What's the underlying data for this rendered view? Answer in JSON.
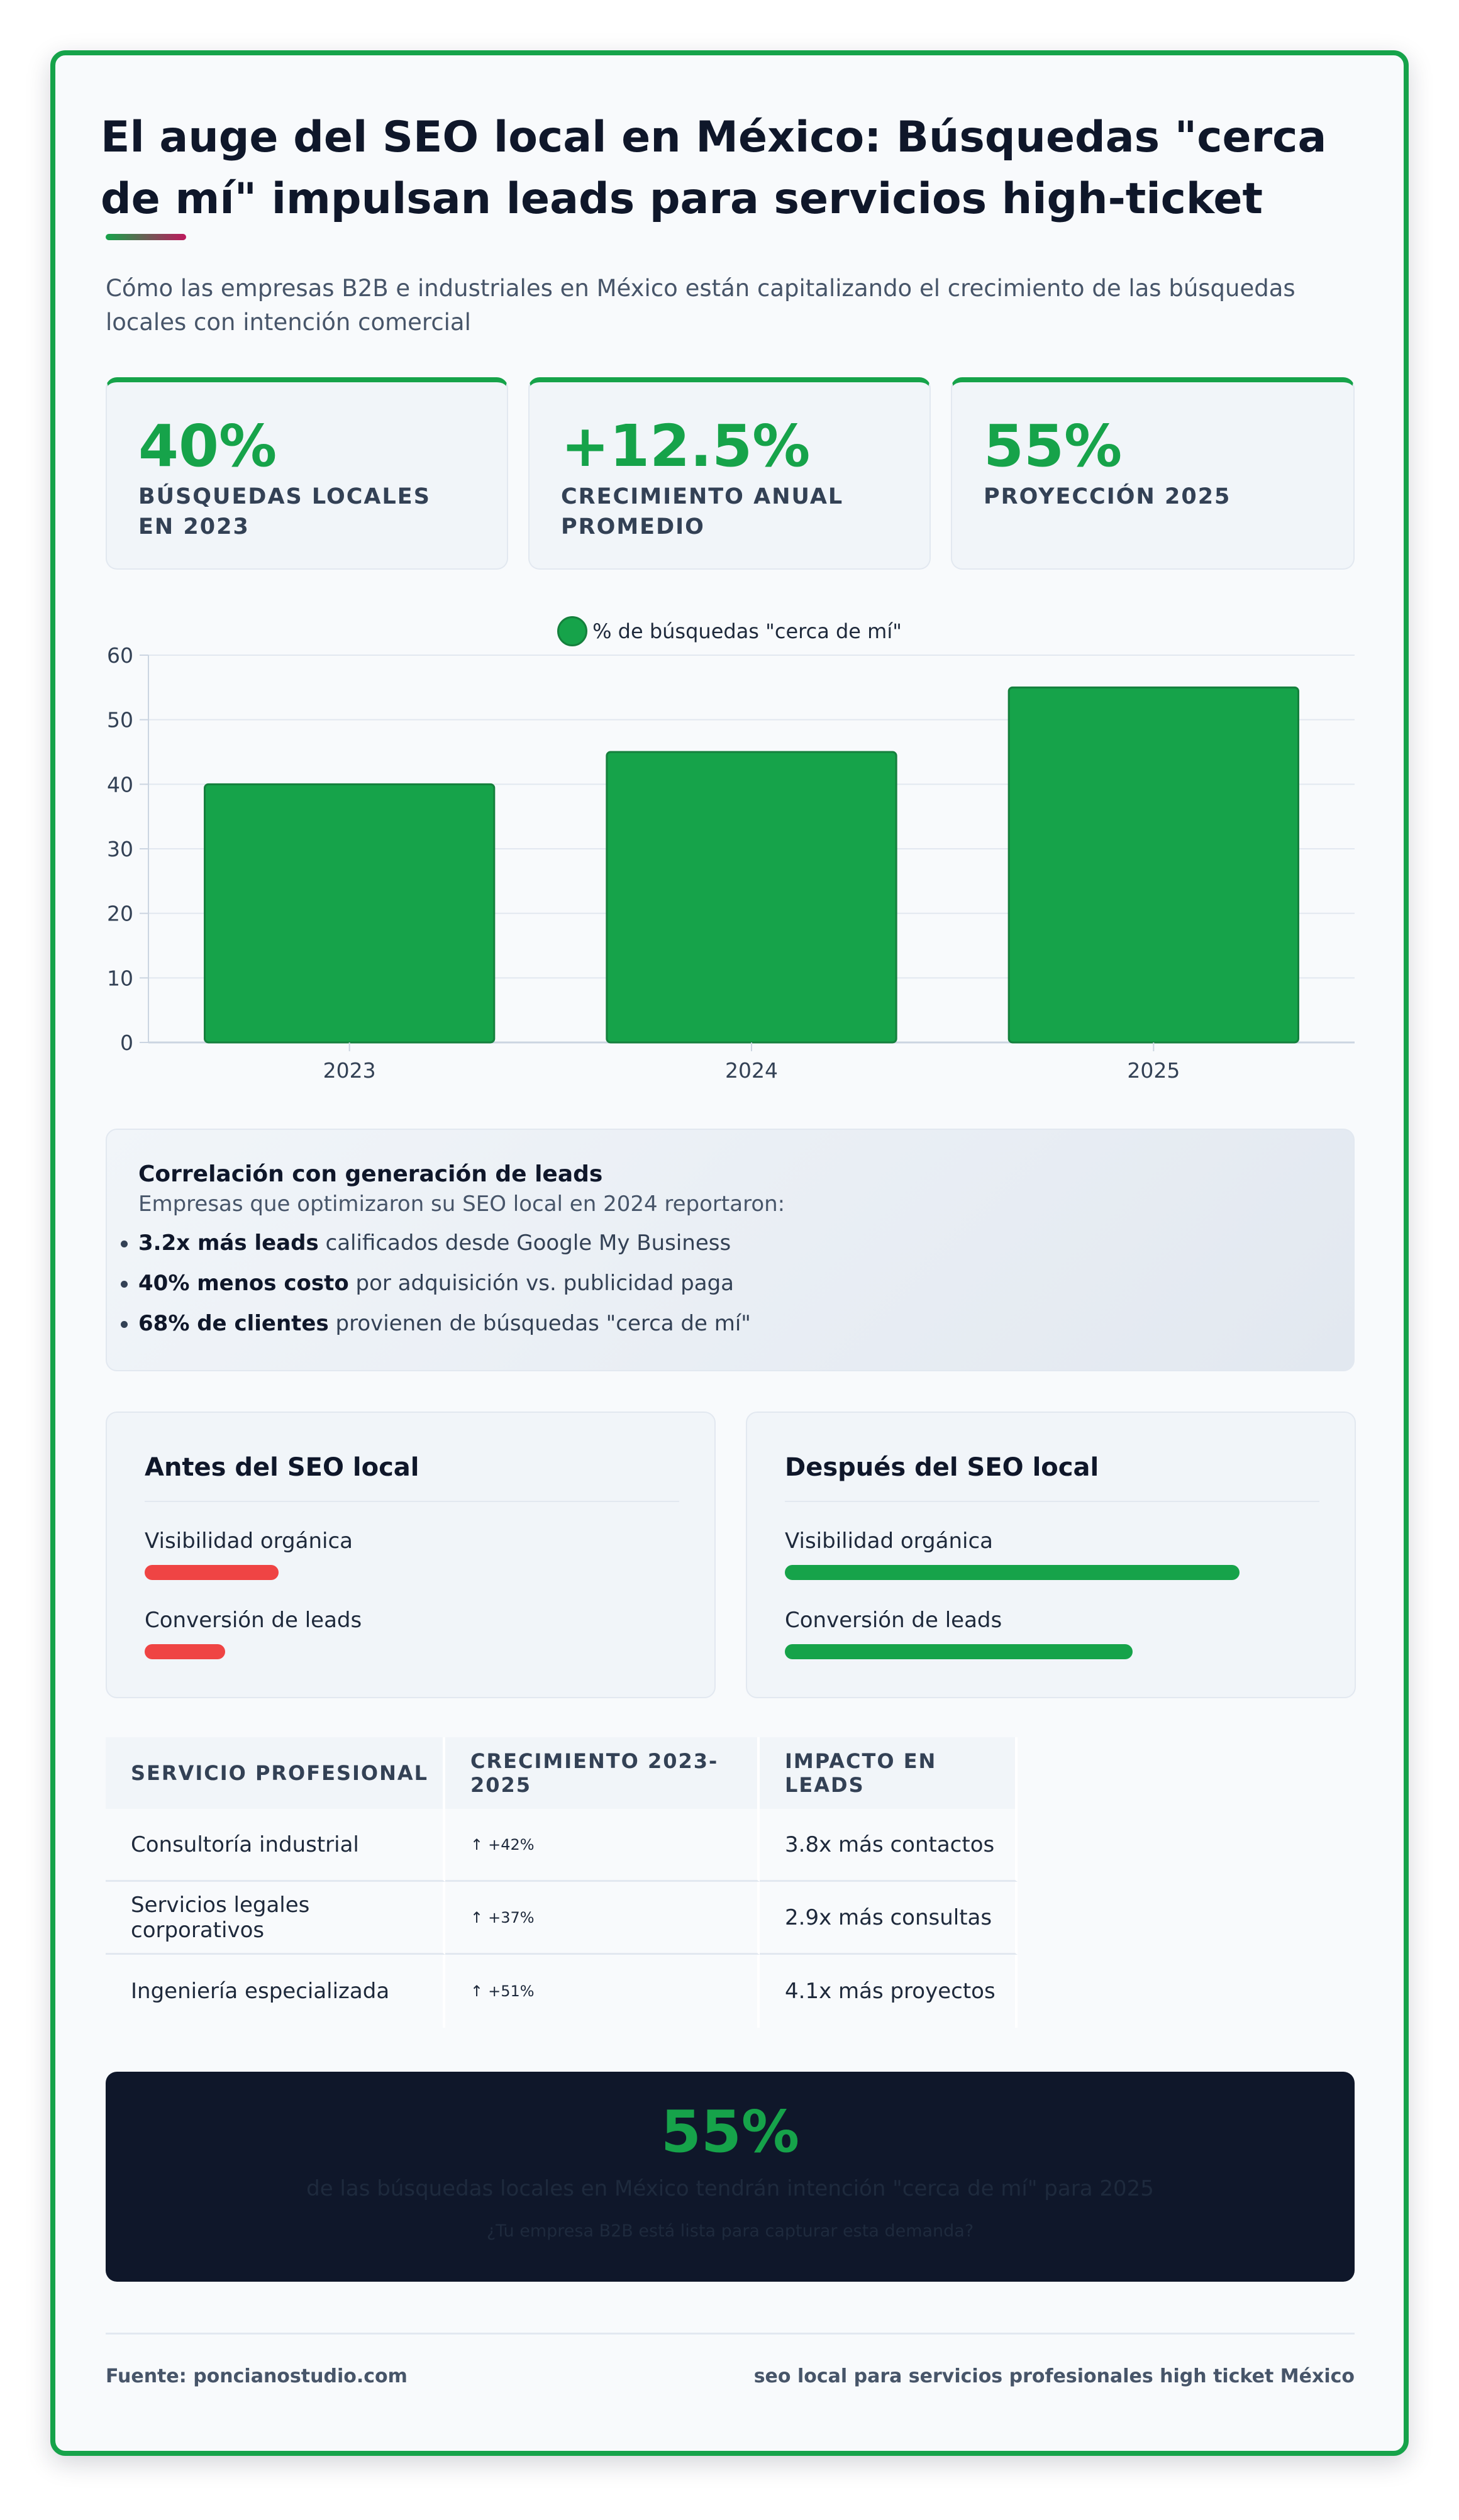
{
  "title": "El auge del SEO local en México: Búsquedas \"cerca de mí\" impulsan leads para servicios high-ticket",
  "subtitle": "Cómo las empresas B2B e industriales en México están capitalizando el crecimiento de las búsquedas locales con intención comercial",
  "colors": {
    "accent": "#16a34a",
    "danger": "#ef4444",
    "dark": "#0f172a"
  },
  "stats": [
    {
      "value": "40%",
      "label": "Búsquedas locales en 2023"
    },
    {
      "value": "+12.5%",
      "label": "Crecimiento anual promedio"
    },
    {
      "value": "55%",
      "label": "Proyección 2025"
    }
  ],
  "chart_data": {
    "type": "bar",
    "categories": [
      "2023",
      "2024",
      "2025"
    ],
    "series": [
      {
        "name": "% de búsquedas \"cerca de mí\"",
        "values": [
          40,
          45,
          55
        ]
      }
    ],
    "ylim": [
      0,
      60
    ],
    "yticks": [
      0,
      10,
      20,
      30,
      40,
      50,
      60
    ],
    "grid": true,
    "legend": "top-center",
    "color": "#16a34a"
  },
  "correlation": {
    "heading": "Correlación con generación de leads",
    "intro": "Empresas que optimizaron su SEO local en 2024 reportaron:",
    "items": [
      {
        "bold": "3.2x más leads",
        "rest": " calificados desde Google My Business"
      },
      {
        "bold": "40% menos costo",
        "rest": " por adquisición vs. publicidad paga"
      },
      {
        "bold": "68% de clientes",
        "rest": " provienen de búsquedas \"cerca de mí\""
      }
    ]
  },
  "comparison": {
    "before": {
      "title": "Antes del SEO local",
      "metric1": "Visibilidad orgánica",
      "metric1_level": 0.25,
      "metric2": "Conversión de leads",
      "metric2_level": 0.15
    },
    "after": {
      "title": "Después del SEO local",
      "metric1": "Visibilidad orgánica",
      "metric1_level": 0.85,
      "metric2": "Conversión de leads",
      "metric2_level": 0.65
    }
  },
  "table": {
    "headers": [
      "Servicio profesional",
      "Crecimiento 2023-2025",
      "Impacto en leads"
    ],
    "rows": [
      {
        "service": "Consultoría industrial",
        "arrow": "↑",
        "growth": "+42%",
        "impact": "3.8x más contactos"
      },
      {
        "service": "Servicios legales corporativos",
        "arrow": "↑",
        "growth": "+37%",
        "impact": "2.9x más consultas"
      },
      {
        "service": "Ingeniería especializada",
        "arrow": "↑",
        "growth": "+51%",
        "impact": "4.1x más proyectos"
      }
    ]
  },
  "cta": {
    "big": "55%",
    "line1": "de las búsquedas locales en México tendrán intención \"cerca de mí\" para 2025",
    "line2": "¿Tu empresa B2B está lista para capturar esta demanda?"
  },
  "footer": {
    "source": "Fuente: poncianostudio.com",
    "keyword": "seo local para servicios profesionales high ticket México"
  }
}
